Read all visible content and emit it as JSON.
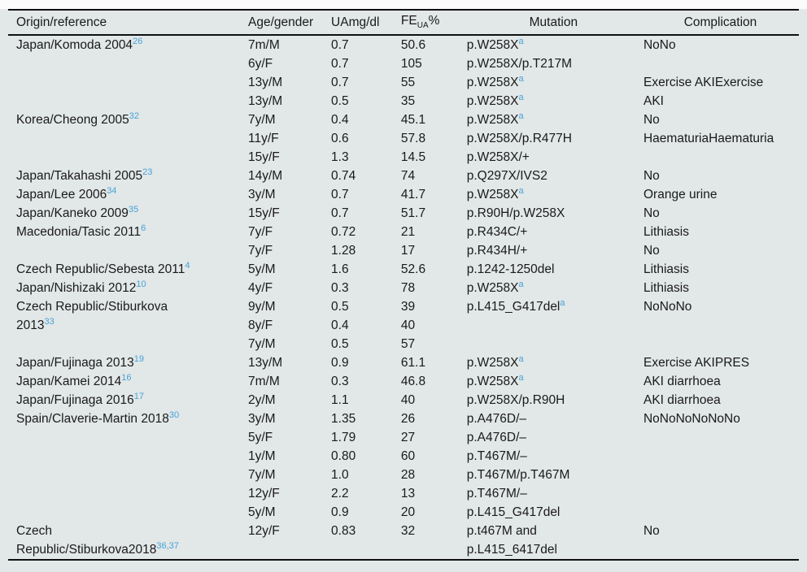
{
  "colors": {
    "panel_background": "#e2e7e7",
    "accent_blue": "#47a3d8",
    "text": "#1a1a1a",
    "rule": "#101010"
  },
  "table": {
    "headers": {
      "origin": "Origin/reference",
      "age": "Age/gender",
      "ua": "UAmg/dl",
      "fe_main": "FE",
      "fe_sub": "UA",
      "fe_suffix": "%",
      "mutation": "Mutation",
      "complication": "Complication"
    },
    "groups": [
      {
        "origin_lines": [
          "Japan/Komoda 2004"
        ],
        "ref": "26",
        "rows": [
          {
            "age": "7m/M",
            "ua": "0.7",
            "fe": "50.6",
            "mutation": "p.W258X",
            "mutation_sup": "a",
            "complication": "NoNo"
          },
          {
            "age": "6y/F",
            "ua": "0.7",
            "fe": "105",
            "mutation": "p.W258X/p.T217M",
            "complication": ""
          },
          {
            "age": "13y/M",
            "ua": "0.7",
            "fe": "55",
            "mutation": "p.W258X",
            "mutation_sup": "a",
            "complication": "Exercise AKIExercise"
          },
          {
            "age": "13y/M",
            "ua": "0.5",
            "fe": "35",
            "mutation": "p.W258X",
            "mutation_sup": "a",
            "complication": "AKI"
          }
        ]
      },
      {
        "origin_lines": [
          "Korea/Cheong 2005"
        ],
        "ref": "32",
        "rows": [
          {
            "age": "7y/M",
            "ua": "0.4",
            "fe": "45.1",
            "mutation": "p.W258X",
            "mutation_sup": "a",
            "complication": "No"
          },
          {
            "age": "11y/F",
            "ua": "0.6",
            "fe": "57.8",
            "mutation": "p.W258X/p.R477H",
            "complication": "HaematuriaHaematuria"
          },
          {
            "age": "15y/F",
            "ua": "1.3",
            "fe": "14.5",
            "mutation": "p.W258X/+",
            "complication": ""
          }
        ]
      },
      {
        "origin_lines": [
          "Japan/Takahashi 2005"
        ],
        "ref": "23",
        "rows": [
          {
            "age": "14y/M",
            "ua": "0.74",
            "fe": "74",
            "mutation": "p.Q297X/IVS2",
            "complication": "No"
          }
        ]
      },
      {
        "origin_lines": [
          "Japan/Lee 2006"
        ],
        "ref": "34",
        "rows": [
          {
            "age": "3y/M",
            "ua": "0.7",
            "fe": "41.7",
            "mutation": "p.W258X",
            "mutation_sup": "a",
            "complication": "Orange urine"
          }
        ]
      },
      {
        "origin_lines": [
          "Japan/Kaneko 2009"
        ],
        "ref": "35",
        "rows": [
          {
            "age": "15y/F",
            "ua": "0.7",
            "fe": "51.7",
            "mutation": "p.R90H/p.W258X",
            "complication": "No"
          }
        ]
      },
      {
        "origin_lines": [
          "Macedonia/Tasic 2011"
        ],
        "ref": "6",
        "rows": [
          {
            "age": "7y/F",
            "ua": "0.72",
            "fe": "21",
            "mutation": "p.R434C/+",
            "complication": "Lithiasis"
          },
          {
            "age": "7y/F",
            "ua": "1.28",
            "fe": "17",
            "mutation": "p.R434H/+",
            "complication": "No"
          }
        ]
      },
      {
        "origin_lines": [
          "Czech Republic/Sebesta 2011"
        ],
        "ref": "4",
        "rows": [
          {
            "age": "5y/M",
            "ua": "1.6",
            "fe": "52.6",
            "mutation": "p.1242-1250del",
            "complication": "Lithiasis"
          }
        ]
      },
      {
        "origin_lines": [
          "Japan/Nishizaki 2012"
        ],
        "ref": "10",
        "rows": [
          {
            "age": "4y/F",
            "ua": "0.3",
            "fe": "78",
            "mutation": "p.W258X",
            "mutation_sup": "a",
            "complication": "Lithiasis"
          }
        ]
      },
      {
        "origin_lines": [
          "Czech Republic/Stiburkova",
          "2013"
        ],
        "ref": "33",
        "rows": [
          {
            "age": "9y/M",
            "ua": "0.5",
            "fe": "39",
            "mutation": "p.L415_G417del",
            "mutation_sup": "a",
            "complication": "NoNoNo"
          },
          {
            "age": "8y/F",
            "ua": "0.4",
            "fe": "40",
            "complication": ""
          },
          {
            "age": "7y/M",
            "ua": "0.5",
            "fe": "57",
            "complication": ""
          }
        ]
      },
      {
        "origin_lines": [
          "Japan/Fujinaga 2013"
        ],
        "ref": "19",
        "rows": [
          {
            "age": "13y/M",
            "ua": "0.9",
            "fe": "61.1",
            "mutation": "p.W258X",
            "mutation_sup": "a",
            "complication": "Exercise AKIPRES"
          }
        ]
      },
      {
        "origin_lines": [
          "Japan/Kamei 2014"
        ],
        "ref": "16",
        "rows": [
          {
            "age": "7m/M",
            "ua": "0.3",
            "fe": "46.8",
            "mutation": "p.W258X",
            "mutation_sup": "a",
            "complication": "AKI diarrhoea"
          }
        ]
      },
      {
        "origin_lines": [
          "Japan/Fujinaga 2016"
        ],
        "ref": "17",
        "rows": [
          {
            "age": "2y/M",
            "ua": "1.1",
            "fe": "40",
            "mutation": "p.W258X/p.R90H",
            "complication": "AKI diarrhoea"
          }
        ]
      },
      {
        "origin_lines": [
          "Spain/Claverie-Martin 2018"
        ],
        "ref": "30",
        "rows": [
          {
            "age": "3y/M",
            "ua": "1.35",
            "fe": "26",
            "mutation": "p.A476D/–",
            "complication": "NoNoNoNoNoNo"
          },
          {
            "age": "5y/F",
            "ua": "1.79",
            "fe": "27",
            "mutation": "p.A476D/–",
            "complication": ""
          },
          {
            "age": "1y/M",
            "ua": "0.80",
            "fe": "60",
            "mutation": "p.T467M/–",
            "complication": ""
          },
          {
            "age": "7y/M",
            "ua": "1.0",
            "fe": "28",
            "mutation": "p.T467M/p.T467M",
            "complication": ""
          },
          {
            "age": "12y/F",
            "ua": "2.2",
            "fe": "13",
            "mutation": "p.T467M/–",
            "complication": ""
          },
          {
            "age": "5y/M",
            "ua": "0.9",
            "fe": "20",
            "mutation": "p.L415_G417del",
            "complication": ""
          }
        ]
      },
      {
        "origin_lines": [
          "Czech",
          "Republic/Stiburkova2018"
        ],
        "ref": "36,37",
        "rows": [
          {
            "age": "12y/F",
            "ua": "0.83",
            "fe": "32",
            "mutation_lines": [
              "p.t467M and",
              "p.L415_6417del"
            ],
            "complication": "No"
          }
        ]
      }
    ]
  }
}
